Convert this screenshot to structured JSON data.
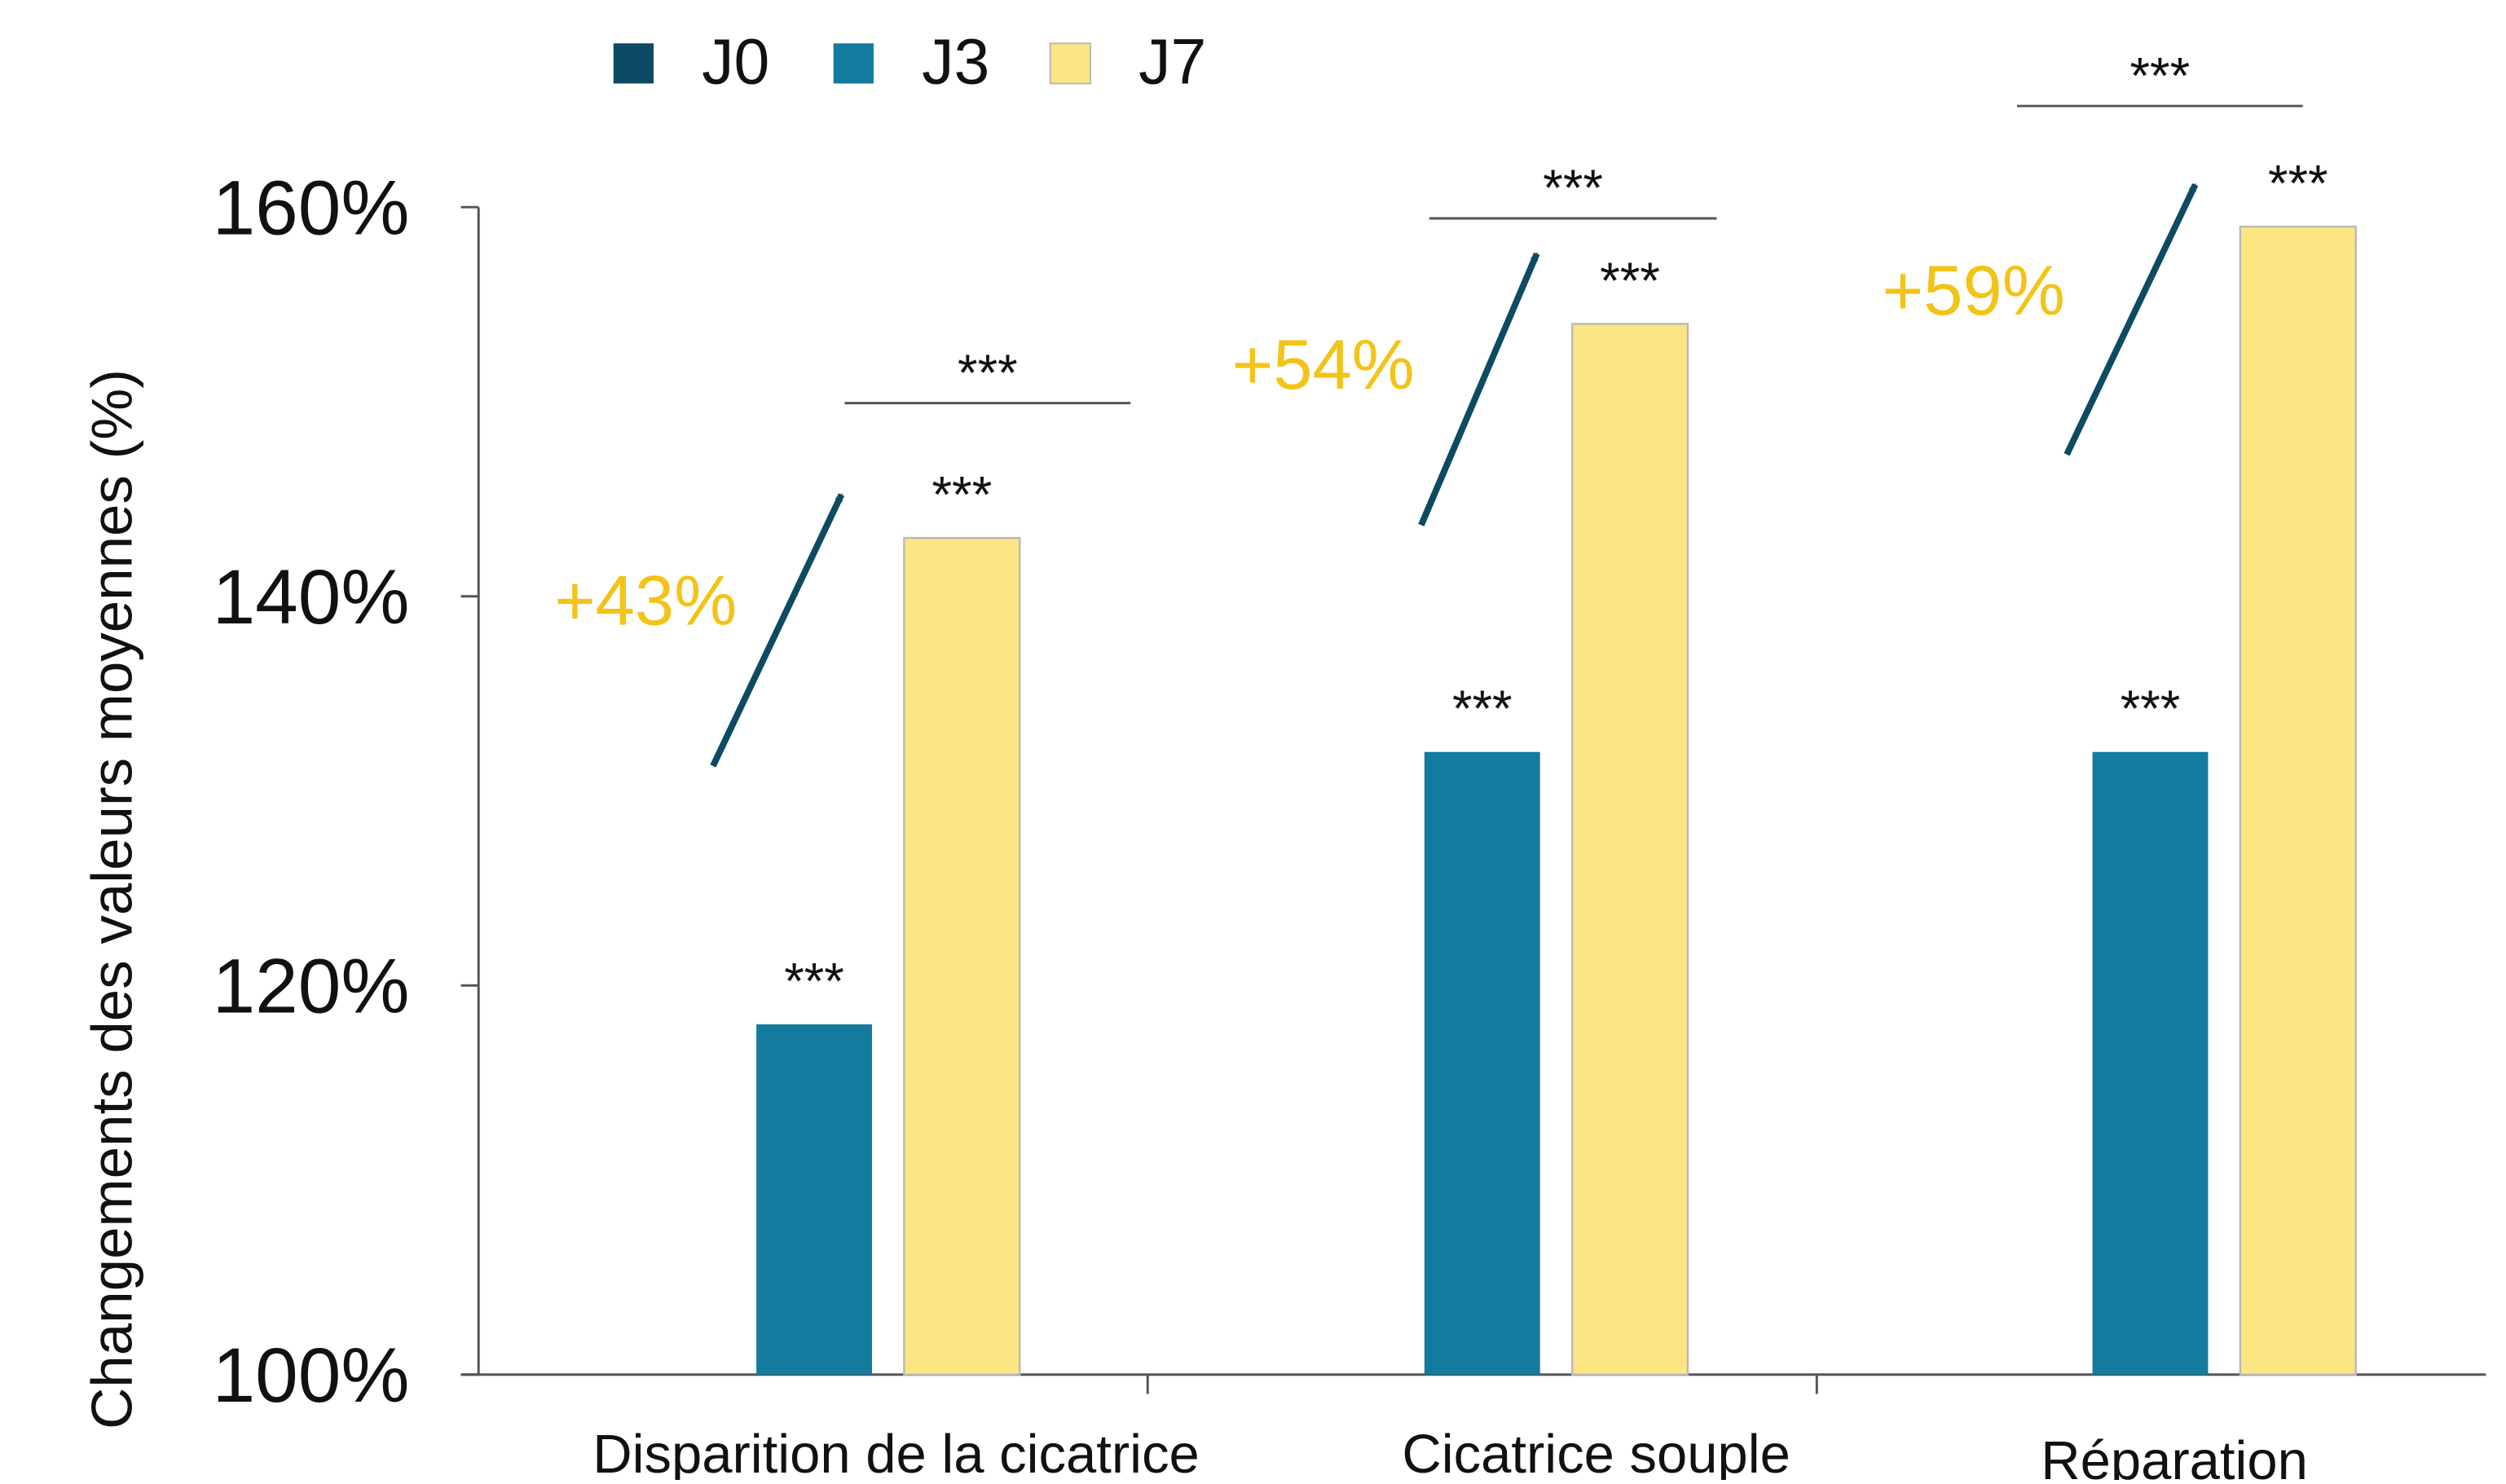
{
  "chart_data": {
    "type": "bar",
    "title": "",
    "xlabel": "",
    "ylabel": "Changements des valeurs moyennes (%)",
    "ylim": [
      100,
      160
    ],
    "y_ticks": [
      100,
      120,
      140,
      160
    ],
    "y_tick_labels": [
      "100%",
      "120%",
      "140%",
      "160%"
    ],
    "categories": [
      "Disparition de la cicatrice",
      "Cicatrice souple",
      "Réparation"
    ],
    "legend_position": "top-left",
    "grid": false,
    "series": [
      {
        "name": "J0",
        "color": "#0d4a63",
        "values": [
          100,
          100,
          100
        ]
      },
      {
        "name": "J3",
        "color": "#137b9e",
        "values": [
          118,
          132,
          132
        ],
        "labels": [
          "***",
          "***",
          "***"
        ]
      },
      {
        "name": "J7",
        "color": "#fde583",
        "values": [
          143,
          154,
          159
        ],
        "labels": [
          "***",
          "***",
          "***"
        ]
      }
    ],
    "increase_labels": [
      "+43%",
      "+54%",
      "+59%"
    ],
    "bracket_labels": [
      "***",
      "***",
      "***"
    ],
    "annotation_color": "#f3c316",
    "arrow_color": "#0d4a63"
  }
}
